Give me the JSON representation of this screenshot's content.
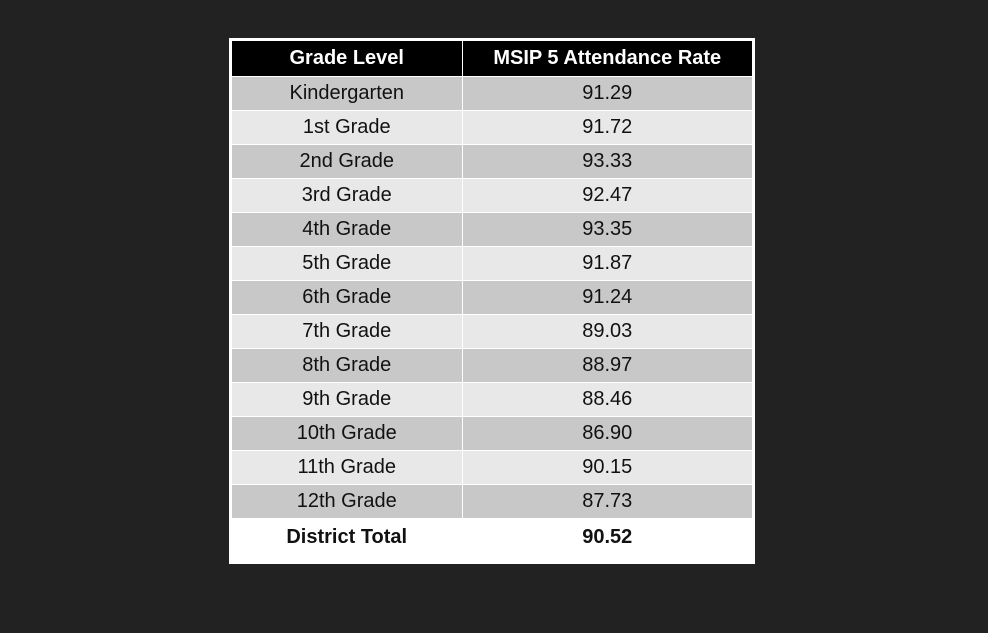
{
  "table": {
    "headers": [
      "Grade Level",
      "MSIP 5 Attendance Rate"
    ],
    "rows": [
      [
        "Kindergarten",
        "91.29"
      ],
      [
        "1st Grade",
        "91.72"
      ],
      [
        "2nd Grade",
        "93.33"
      ],
      [
        "3rd Grade",
        "92.47"
      ],
      [
        "4th Grade",
        "93.35"
      ],
      [
        "5th Grade",
        "91.87"
      ],
      [
        "6th Grade",
        "91.24"
      ],
      [
        "7th Grade",
        "89.03"
      ],
      [
        "8th Grade",
        "88.97"
      ],
      [
        "9th Grade",
        "88.46"
      ],
      [
        "10th Grade",
        "86.90"
      ],
      [
        "11th Grade",
        "90.15"
      ],
      [
        "12th Grade",
        "87.73"
      ]
    ],
    "total": [
      "District Total",
      "90.52"
    ]
  },
  "colors": {
    "background": "#222222",
    "header_background": "#000000",
    "header_text": "#ffffff",
    "row_dark": "#c8c8c8",
    "row_light": "#e8e8e8"
  }
}
